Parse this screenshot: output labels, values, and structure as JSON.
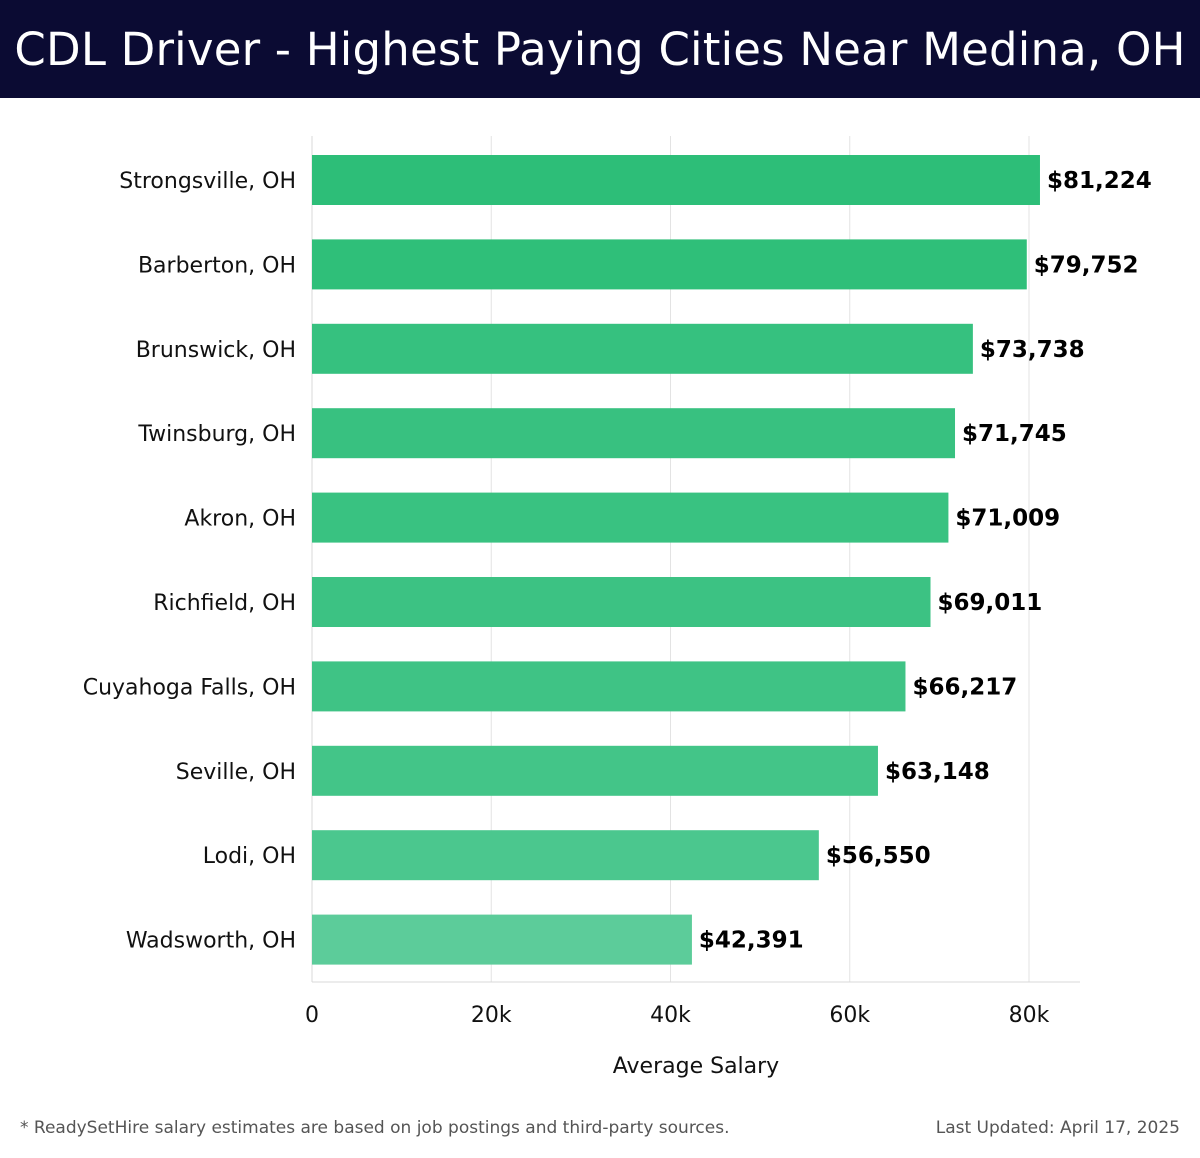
{
  "header": {
    "title": "CDL Driver - Highest Paying Cities Near Medina, OH"
  },
  "chart_data": {
    "type": "bar",
    "orientation": "horizontal",
    "title": "CDL Driver - Highest Paying Cities Near Medina, OH",
    "categories": [
      "Strongsville, OH",
      "Barberton, OH",
      "Brunswick, OH",
      "Twinsburg, OH",
      "Akron, OH",
      "Richfield, OH",
      "Cuyahoga Falls, OH",
      "Seville, OH",
      "Lodi, OH",
      "Wadsworth, OH"
    ],
    "values": [
      81224,
      79752,
      73738,
      71745,
      71009,
      69011,
      66217,
      63148,
      56550,
      42391
    ],
    "value_labels": [
      "$81,224",
      "$79,752",
      "$73,738",
      "$71,745",
      "$71,009",
      "$69,011",
      "$66,217",
      "$63,148",
      "$56,550",
      "$42,391"
    ],
    "xlabel": "Average Salary",
    "ylabel": "",
    "xlim": [
      0,
      85500
    ],
    "xticks": [
      0,
      20000,
      40000,
      60000,
      80000
    ],
    "xtick_labels": [
      "0",
      "20k",
      "40k",
      "60k",
      "80k"
    ],
    "grid": true,
    "colors": {
      "bar_max": "#2dbe78",
      "bar_min": "#5ccc9a",
      "grid": "#e3e3e3",
      "label": "#000000"
    }
  },
  "footer": {
    "note": "* ReadySetHire salary estimates are based on job postings and third-party sources.",
    "updated": "Last Updated: April 17, 2025"
  }
}
